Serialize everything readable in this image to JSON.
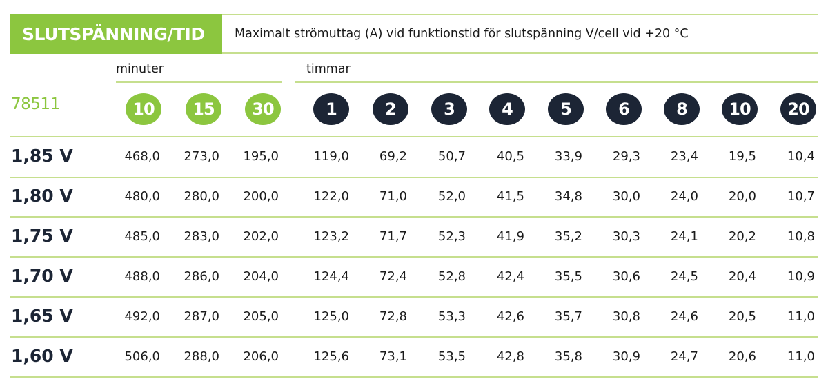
{
  "header": {
    "title": "SLUTSPÄNNING/TID",
    "subtitle": "Maximalt strömuttag (A) vid funktionstid för slutspänning V/cell vid +20 °C"
  },
  "groups": {
    "minutes_label": "minuter",
    "hours_label": "timmar"
  },
  "model": "78511",
  "columns": [
    {
      "label": "10",
      "unit": "min"
    },
    {
      "label": "15",
      "unit": "min"
    },
    {
      "label": "30",
      "unit": "min"
    },
    {
      "label": "1",
      "unit": "h"
    },
    {
      "label": "2",
      "unit": "h"
    },
    {
      "label": "3",
      "unit": "h"
    },
    {
      "label": "4",
      "unit": "h"
    },
    {
      "label": "5",
      "unit": "h"
    },
    {
      "label": "6",
      "unit": "h"
    },
    {
      "label": "8",
      "unit": "h"
    },
    {
      "label": "10",
      "unit": "h"
    },
    {
      "label": "20",
      "unit": "h"
    }
  ],
  "rows": [
    {
      "label": "1,85 V",
      "values": [
        "468,0",
        "273,0",
        "195,0",
        "119,0",
        "69,2",
        "50,7",
        "40,5",
        "33,9",
        "29,3",
        "23,4",
        "19,5",
        "10,4"
      ]
    },
    {
      "label": "1,80 V",
      "values": [
        "480,0",
        "280,0",
        "200,0",
        "122,0",
        "71,0",
        "52,0",
        "41,5",
        "34,8",
        "30,0",
        "24,0",
        "20,0",
        "10,7"
      ]
    },
    {
      "label": "1,75 V",
      "values": [
        "485,0",
        "283,0",
        "202,0",
        "123,2",
        "71,7",
        "52,3",
        "41,9",
        "35,2",
        "30,3",
        "24,1",
        "20,2",
        "10,8"
      ]
    },
    {
      "label": "1,70 V",
      "values": [
        "488,0",
        "286,0",
        "204,0",
        "124,4",
        "72,4",
        "52,8",
        "42,4",
        "35,5",
        "30,6",
        "24,5",
        "20,4",
        "10,9"
      ]
    },
    {
      "label": "1,65 V",
      "values": [
        "492,0",
        "287,0",
        "205,0",
        "125,0",
        "72,8",
        "53,3",
        "42,6",
        "35,7",
        "30,8",
        "24,6",
        "20,5",
        "11,0"
      ]
    },
    {
      "label": "1,60 V",
      "values": [
        "506,0",
        "288,0",
        "206,0",
        "125,6",
        "73,1",
        "53,5",
        "42,8",
        "35,8",
        "30,9",
        "24,7",
        "20,6",
        "11,0"
      ]
    }
  ],
  "colors": {
    "accent_green": "#8cc63f",
    "rule_green": "#c6df8e",
    "badge_dark": "#1c2535"
  }
}
